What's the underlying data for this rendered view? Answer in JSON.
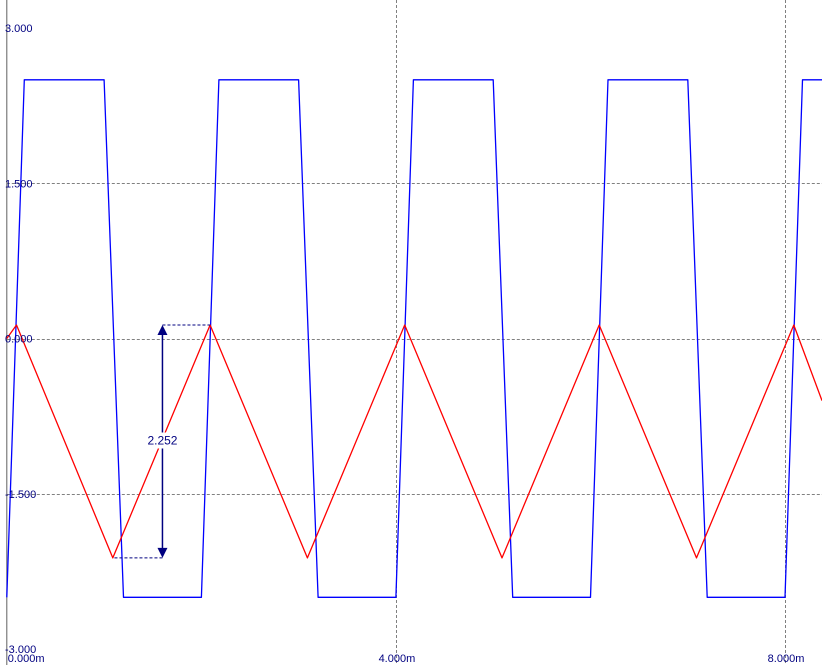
{
  "chart_data": {
    "type": "line",
    "title": "",
    "xlabel": "",
    "ylabel": "",
    "x_range": [
      -7e-05,
      0.00838
    ],
    "ylim": [
      -3.0,
      3.0
    ],
    "grid": true,
    "x_ticks": [
      {
        "value": 0.0,
        "label": "0.000m"
      },
      {
        "value": 0.004,
        "label": "4.000m"
      },
      {
        "value": 0.008,
        "label": "8.000m"
      }
    ],
    "y_ticks": [
      {
        "value": 3.0,
        "label": "3.000"
      },
      {
        "value": 1.5,
        "label": "1.500"
      },
      {
        "value": 0.0,
        "label": "0.000"
      },
      {
        "value": -1.5,
        "label": "-1.500"
      },
      {
        "value": -3.0,
        "label": "-3.000"
      }
    ],
    "colors": {
      "grid": "#808080",
      "square": "#0000ff",
      "triangle": "#ff0000",
      "annotation": "#000080"
    },
    "series": [
      {
        "color": "#0000ff",
        "x": [
          0.0,
          0.00018,
          0.001,
          0.0012,
          0.002,
          0.00218,
          0.003,
          0.0032,
          0.004,
          0.00418,
          0.005,
          0.0052,
          0.006,
          0.00618,
          0.007,
          0.0072,
          0.008,
          0.00818,
          0.00838
        ],
        "y": [
          -2.5,
          2.5,
          2.5,
          -2.5,
          -2.5,
          2.5,
          2.5,
          -2.5,
          -2.5,
          2.5,
          2.5,
          -2.5,
          -2.5,
          2.5,
          2.5,
          -2.5,
          -2.5,
          2.5,
          2.5
        ]
      },
      {
        "color": "#ff0000",
        "x": [
          0.0,
          0.0001,
          0.00109,
          0.00209,
          0.00309,
          0.00409,
          0.00509,
          0.00609,
          0.00709,
          0.00809,
          0.00838
        ],
        "y": [
          0.0,
          0.13,
          -2.12,
          0.13,
          -2.12,
          0.13,
          -2.12,
          0.13,
          -2.12,
          0.13,
          -0.6
        ]
      }
    ],
    "annotations": [
      {
        "label": "2.252",
        "x": 0.0016,
        "y_top": 0.13,
        "y_bottom": -2.12,
        "x_from_top": 0.00209,
        "x_from_bottom": 0.00109
      }
    ]
  }
}
